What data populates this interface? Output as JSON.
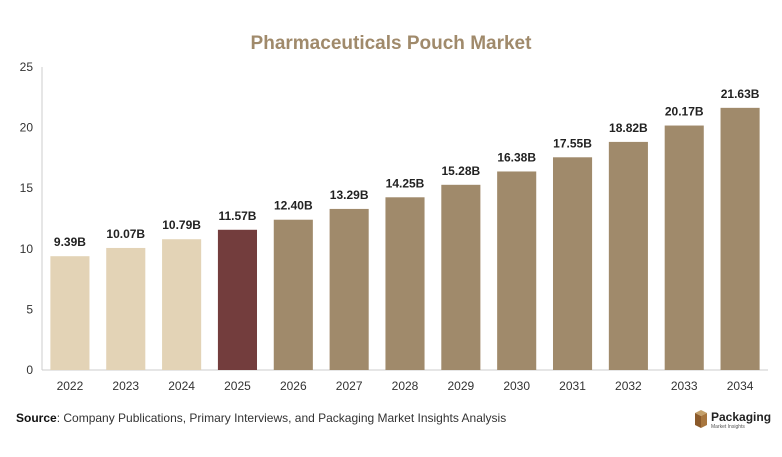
{
  "title": "Pharmaceuticals Pouch Market",
  "source": {
    "label": "Source",
    "text": ": Company Publications, Primary Interviews, and Packaging Market Insights Analysis"
  },
  "logo": {
    "name": "Packaging",
    "tagline": "Market Insights"
  },
  "chart_data": {
    "type": "bar",
    "categories": [
      "2022",
      "2023",
      "2024",
      "2025",
      "2026",
      "2027",
      "2028",
      "2029",
      "2030",
      "2031",
      "2032",
      "2033",
      "2034"
    ],
    "values": [
      9.39,
      10.07,
      10.79,
      11.57,
      12.4,
      13.29,
      14.25,
      15.28,
      16.38,
      17.55,
      18.82,
      20.17,
      21.63
    ],
    "data_labels": [
      "9.39B",
      "10.07B",
      "10.79B",
      "11.57B",
      "12.40B",
      "13.29B",
      "14.25B",
      "15.28B",
      "16.38B",
      "17.55B",
      "18.82B",
      "20.17B",
      "21.63B"
    ],
    "bar_colors": [
      "#e3d3b6",
      "#e3d3b6",
      "#e3d3b6",
      "#733d3d",
      "#a08a6b",
      "#a08a6b",
      "#a08a6b",
      "#a08a6b",
      "#a08a6b",
      "#a08a6b",
      "#a08a6b",
      "#a08a6b",
      "#a08a6b"
    ],
    "title": "Pharmaceuticals Pouch Market",
    "xlabel": "",
    "ylabel": "",
    "ylim": [
      0,
      25
    ],
    "yticks": [
      0,
      5,
      10,
      15,
      20,
      25
    ],
    "grid": false,
    "legend": "none"
  }
}
